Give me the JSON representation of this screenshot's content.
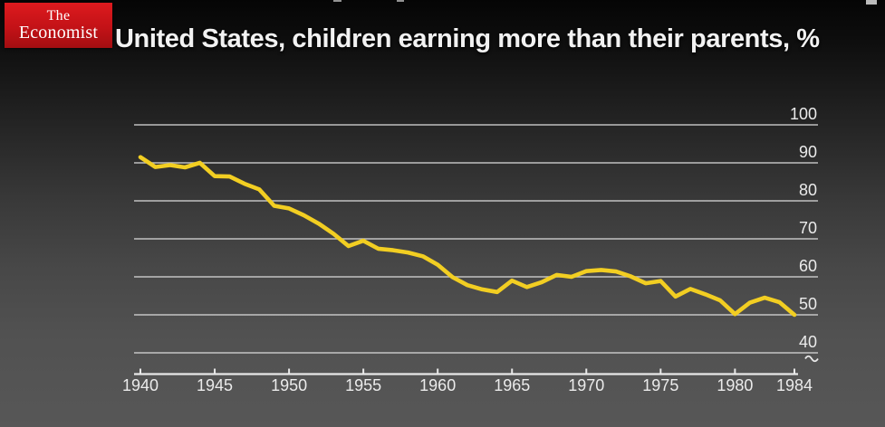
{
  "header": {
    "brand": {
      "line1": "The",
      "line2": "Economist",
      "bg_color": "#c31217",
      "text_color": "#ffffff"
    },
    "title": "United States, children earning more than their parents, %"
  },
  "chart_data": {
    "type": "line",
    "title": "United States, children earning more than their parents, %",
    "xlabel": "",
    "ylabel": "%",
    "xlim": [
      1940,
      1984
    ],
    "ylim": [
      40,
      100
    ],
    "grid": "horizontal",
    "axis_break_below_min": true,
    "legend": "none",
    "grid_color": "#d9d9d9",
    "axis_color": "#e8e8e8",
    "label_color": "#ebebeb",
    "x_ticks": [
      "1940",
      "1945",
      "1950",
      "1955",
      "1960",
      "1965",
      "1970",
      "1975",
      "1980",
      "1984"
    ],
    "y_ticks": [
      "100",
      "90",
      "80",
      "70",
      "60",
      "50",
      "40"
    ],
    "x": [
      1940,
      1941,
      1942,
      1943,
      1944,
      1945,
      1946,
      1947,
      1948,
      1949,
      1950,
      1951,
      1952,
      1953,
      1954,
      1955,
      1956,
      1957,
      1958,
      1959,
      1960,
      1961,
      1962,
      1963,
      1964,
      1965,
      1966,
      1967,
      1968,
      1969,
      1970,
      1971,
      1972,
      1973,
      1974,
      1975,
      1976,
      1977,
      1978,
      1979,
      1980,
      1981,
      1982,
      1983,
      1984
    ],
    "series": [
      {
        "name": "Children earning more than their parents (%)",
        "color": "#F2CE22",
        "values": [
          91.5,
          88.9,
          89.4,
          88.8,
          90.0,
          86.5,
          86.4,
          84.5,
          83.0,
          78.7,
          78.0,
          76.2,
          74.0,
          71.3,
          68.1,
          69.5,
          67.4,
          67.0,
          66.4,
          65.4,
          63.2,
          59.9,
          57.8,
          56.7,
          56.0,
          59.0,
          57.3,
          58.6,
          60.5,
          60.0,
          61.5,
          61.8,
          61.4,
          60.1,
          58.3,
          58.9,
          54.8,
          56.8,
          55.4,
          53.8,
          50.2,
          53.2,
          54.5,
          53.3,
          50.0
        ]
      }
    ]
  }
}
